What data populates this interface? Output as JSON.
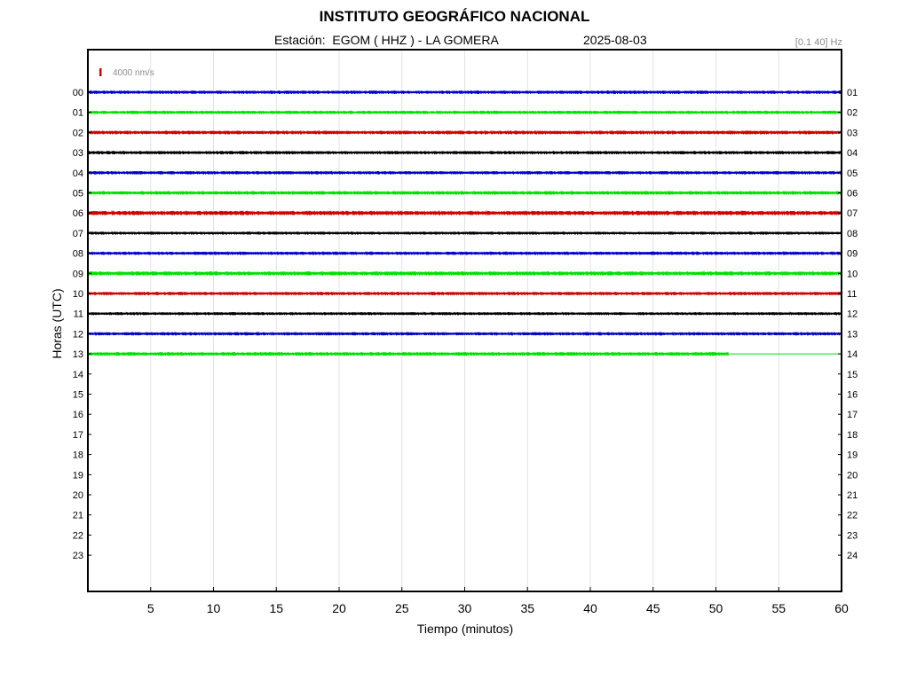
{
  "header": {
    "title": "INSTITUTO GEOGRÁFICO NACIONAL",
    "station": "Estación:  EGOM ( HHZ ) - LA GOMERA",
    "date": "2025-08-03",
    "filter": "[0.1 40] Hz"
  },
  "chart_data": {
    "type": "line",
    "xlabel": "Tiempo (minutos)",
    "ylabel": "Horas (UTC)",
    "xlim": [
      0,
      60
    ],
    "x_ticks": [
      "5",
      "10",
      "15",
      "20",
      "25",
      "30",
      "35",
      "40",
      "45",
      "50",
      "55",
      "60"
    ],
    "left_ticks": [
      "00",
      "01",
      "02",
      "03",
      "04",
      "05",
      "06",
      "07",
      "08",
      "09",
      "10",
      "11",
      "12",
      "13",
      "14",
      "15",
      "16",
      "17",
      "18",
      "19",
      "20",
      "21",
      "22",
      "23"
    ],
    "right_ticks": [
      "01",
      "02",
      "03",
      "04",
      "05",
      "06",
      "07",
      "08",
      "09",
      "10",
      "11",
      "12",
      "13",
      "14",
      "15",
      "16",
      "17",
      "18",
      "19",
      "20",
      "21",
      "22",
      "23",
      "24"
    ],
    "grid": true,
    "scale_bar": {
      "label": "4000 nm/s",
      "color": "#d00000"
    },
    "trace_colors": [
      "#0000c8",
      "#00e000",
      "#d00000",
      "#000000"
    ],
    "series": [
      {
        "hour": "00",
        "duration_min": 60,
        "amplitude": 1.0
      },
      {
        "hour": "01",
        "duration_min": 60,
        "amplitude": 1.0
      },
      {
        "hour": "02",
        "duration_min": 60,
        "amplitude": 1.1
      },
      {
        "hour": "03",
        "duration_min": 60,
        "amplitude": 1.0
      },
      {
        "hour": "04",
        "duration_min": 60,
        "amplitude": 1.0
      },
      {
        "hour": "05",
        "duration_min": 60,
        "amplitude": 1.1
      },
      {
        "hour": "06",
        "duration_min": 60,
        "amplitude": 1.3
      },
      {
        "hour": "07",
        "duration_min": 60,
        "amplitude": 0.9
      },
      {
        "hour": "08",
        "duration_min": 60,
        "amplitude": 1.0
      },
      {
        "hour": "09",
        "duration_min": 60,
        "amplitude": 1.2
      },
      {
        "hour": "10",
        "duration_min": 60,
        "amplitude": 1.0
      },
      {
        "hour": "11",
        "duration_min": 60,
        "amplitude": 0.9
      },
      {
        "hour": "12",
        "duration_min": 60,
        "amplitude": 1.0
      },
      {
        "hour": "13",
        "duration_min": 51,
        "amplitude": 1.1
      }
    ]
  }
}
